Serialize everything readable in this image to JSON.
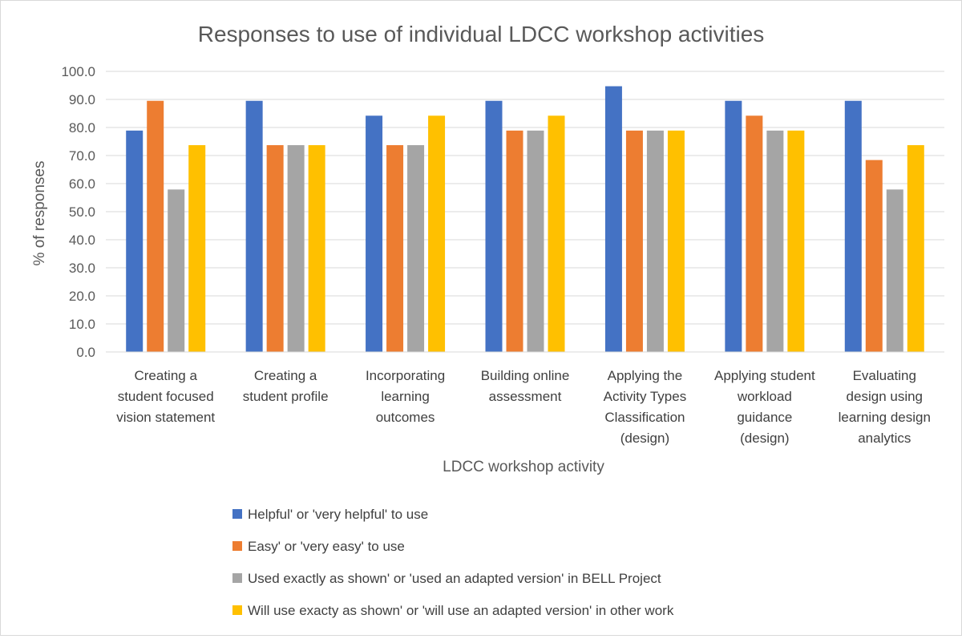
{
  "chart_data": {
    "type": "bar",
    "title": "Responses to use of individual LDCC workshop activities",
    "xlabel": "LDCC workshop activity",
    "ylabel": "% of responses",
    "ylim": [
      0,
      100
    ],
    "yticks": [
      "0.0",
      "10.0",
      "20.0",
      "30.0",
      "40.0",
      "50.0",
      "60.0",
      "70.0",
      "80.0",
      "90.0",
      "100.0"
    ],
    "grid": true,
    "legend_position": "bottom",
    "categories": [
      [
        "Creating a",
        "student focused",
        "vision statement"
      ],
      [
        "Creating a",
        "student profile"
      ],
      [
        "Incorporating",
        "learning",
        "outcomes"
      ],
      [
        "Building online",
        "assessment"
      ],
      [
        "Applying the",
        "Activity Types",
        "Classification",
        "(design)"
      ],
      [
        "Applying student",
        "workload",
        "guidance",
        "(design)"
      ],
      [
        "Evaluating",
        "design using",
        "learning design",
        "analytics"
      ]
    ],
    "series": [
      {
        "name": "Helpful' or 'very helpful' to use",
        "color": "#4472C4",
        "values": [
          78.9,
          89.5,
          84.2,
          89.5,
          94.7,
          89.5,
          89.5
        ]
      },
      {
        "name": "Easy' or 'very easy' to use",
        "color": "#ED7D31",
        "values": [
          89.5,
          73.7,
          73.7,
          78.9,
          78.9,
          84.2,
          68.4
        ]
      },
      {
        "name": "Used exactly as shown' or 'used an adapted version' in BELL Project",
        "color": "#A5A5A5",
        "values": [
          57.9,
          73.7,
          73.7,
          78.9,
          78.9,
          78.9,
          57.9
        ]
      },
      {
        "name": "Will use exacty as shown' or 'will use an adapted version' in other work",
        "color": "#FFC000",
        "values": [
          73.7,
          73.7,
          84.2,
          84.2,
          78.9,
          78.9,
          73.7
        ]
      }
    ]
  }
}
